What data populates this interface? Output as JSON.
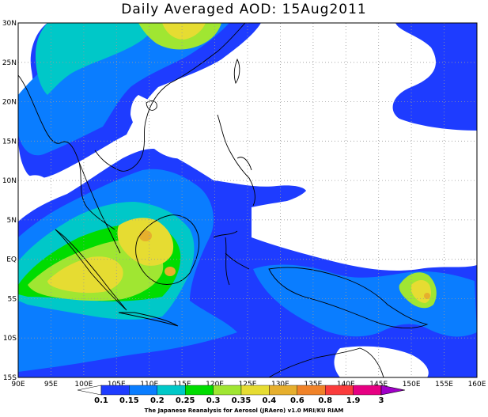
{
  "title": "Daily Averaged AOD: 15Aug2011",
  "credit": "The Japanese Reanalysis for Aerosol (JRAero) v1.0 MRI/KU RIAM",
  "lon_labels": [
    "90E",
    "95E",
    "100E",
    "105E",
    "110E",
    "115E",
    "120E",
    "125E",
    "130E",
    "135E",
    "140E",
    "145E",
    "150E",
    "155E",
    "160E"
  ],
  "lat_labels": [
    "30N",
    "25N",
    "20N",
    "15N",
    "10N",
    "5N",
    "EQ",
    "5S",
    "10S",
    "15S"
  ],
  "colorbar": {
    "labels": [
      "0.1",
      "0.15",
      "0.2",
      "0.25",
      "0.3",
      "0.35",
      "0.4",
      "0.6",
      "0.8",
      "1.9",
      "3"
    ],
    "colors": [
      "#1e3cff",
      "#0a7dff",
      "#00c8c8",
      "#00dc00",
      "#a0e632",
      "#e6dc32",
      "#e6af2d",
      "#f08228",
      "#fa3c3c",
      "#e60082",
      "#a000c8"
    ]
  },
  "palette": {
    "c015": "#1e3cff",
    "c020": "#0a7dff",
    "c025": "#00c8c8",
    "c030": "#00dc00",
    "c035": "#a0e632",
    "c040": "#e6dc32",
    "c060": "#e6af2d",
    "c080": "#f08228",
    "c190": "#fa3c3c"
  },
  "map_extent": {
    "lon": [
      90,
      160
    ],
    "lat": [
      -15,
      30
    ]
  }
}
